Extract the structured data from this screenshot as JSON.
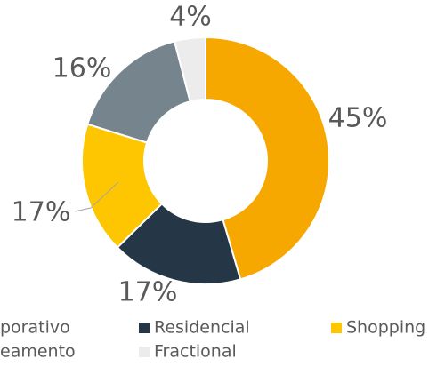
{
  "chart_data": {
    "type": "pie",
    "categories": [
      "porativo",
      "Residencial",
      "Shopping",
      "eamento",
      "Fractional"
    ],
    "values": [
      45,
      17,
      17,
      16,
      4
    ],
    "value_labels": [
      "45%",
      "17%",
      "17%",
      "16%",
      "4%"
    ],
    "colors": [
      "#f7a800",
      "#253746",
      "#fdc600",
      "#75848d",
      "#ececec"
    ],
    "donut": true
  }
}
